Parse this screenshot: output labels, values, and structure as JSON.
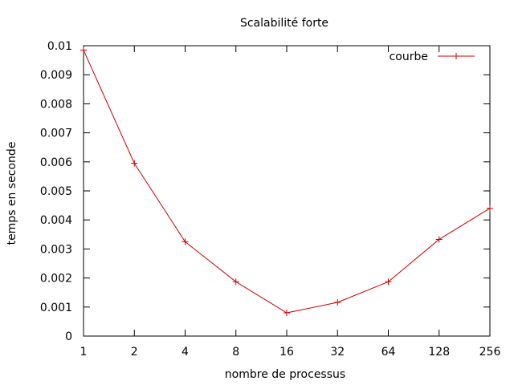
{
  "chart_data": {
    "type": "line",
    "title": "Scalabilité forte",
    "xlabel": "nombre de processus",
    "ylabel": "temps en seconde",
    "x_scale": "log2",
    "categories": [
      "1",
      "2",
      "4",
      "8",
      "16",
      "32",
      "64",
      "128",
      "256"
    ],
    "ylim": [
      0,
      0.01
    ],
    "yticks": [
      "0",
      "0.001",
      "0.002",
      "0.003",
      "0.004",
      "0.005",
      "0.006",
      "0.007",
      "0.008",
      "0.009",
      "0.01"
    ],
    "grid": false,
    "legend_position": "top-right",
    "series": [
      {
        "name": "courbe",
        "color": "#cc0000",
        "marker": "plus",
        "values": [
          0.00985,
          0.00595,
          0.00325,
          0.00187,
          0.0008,
          0.00116,
          0.00187,
          0.00333,
          0.0044
        ]
      }
    ]
  }
}
